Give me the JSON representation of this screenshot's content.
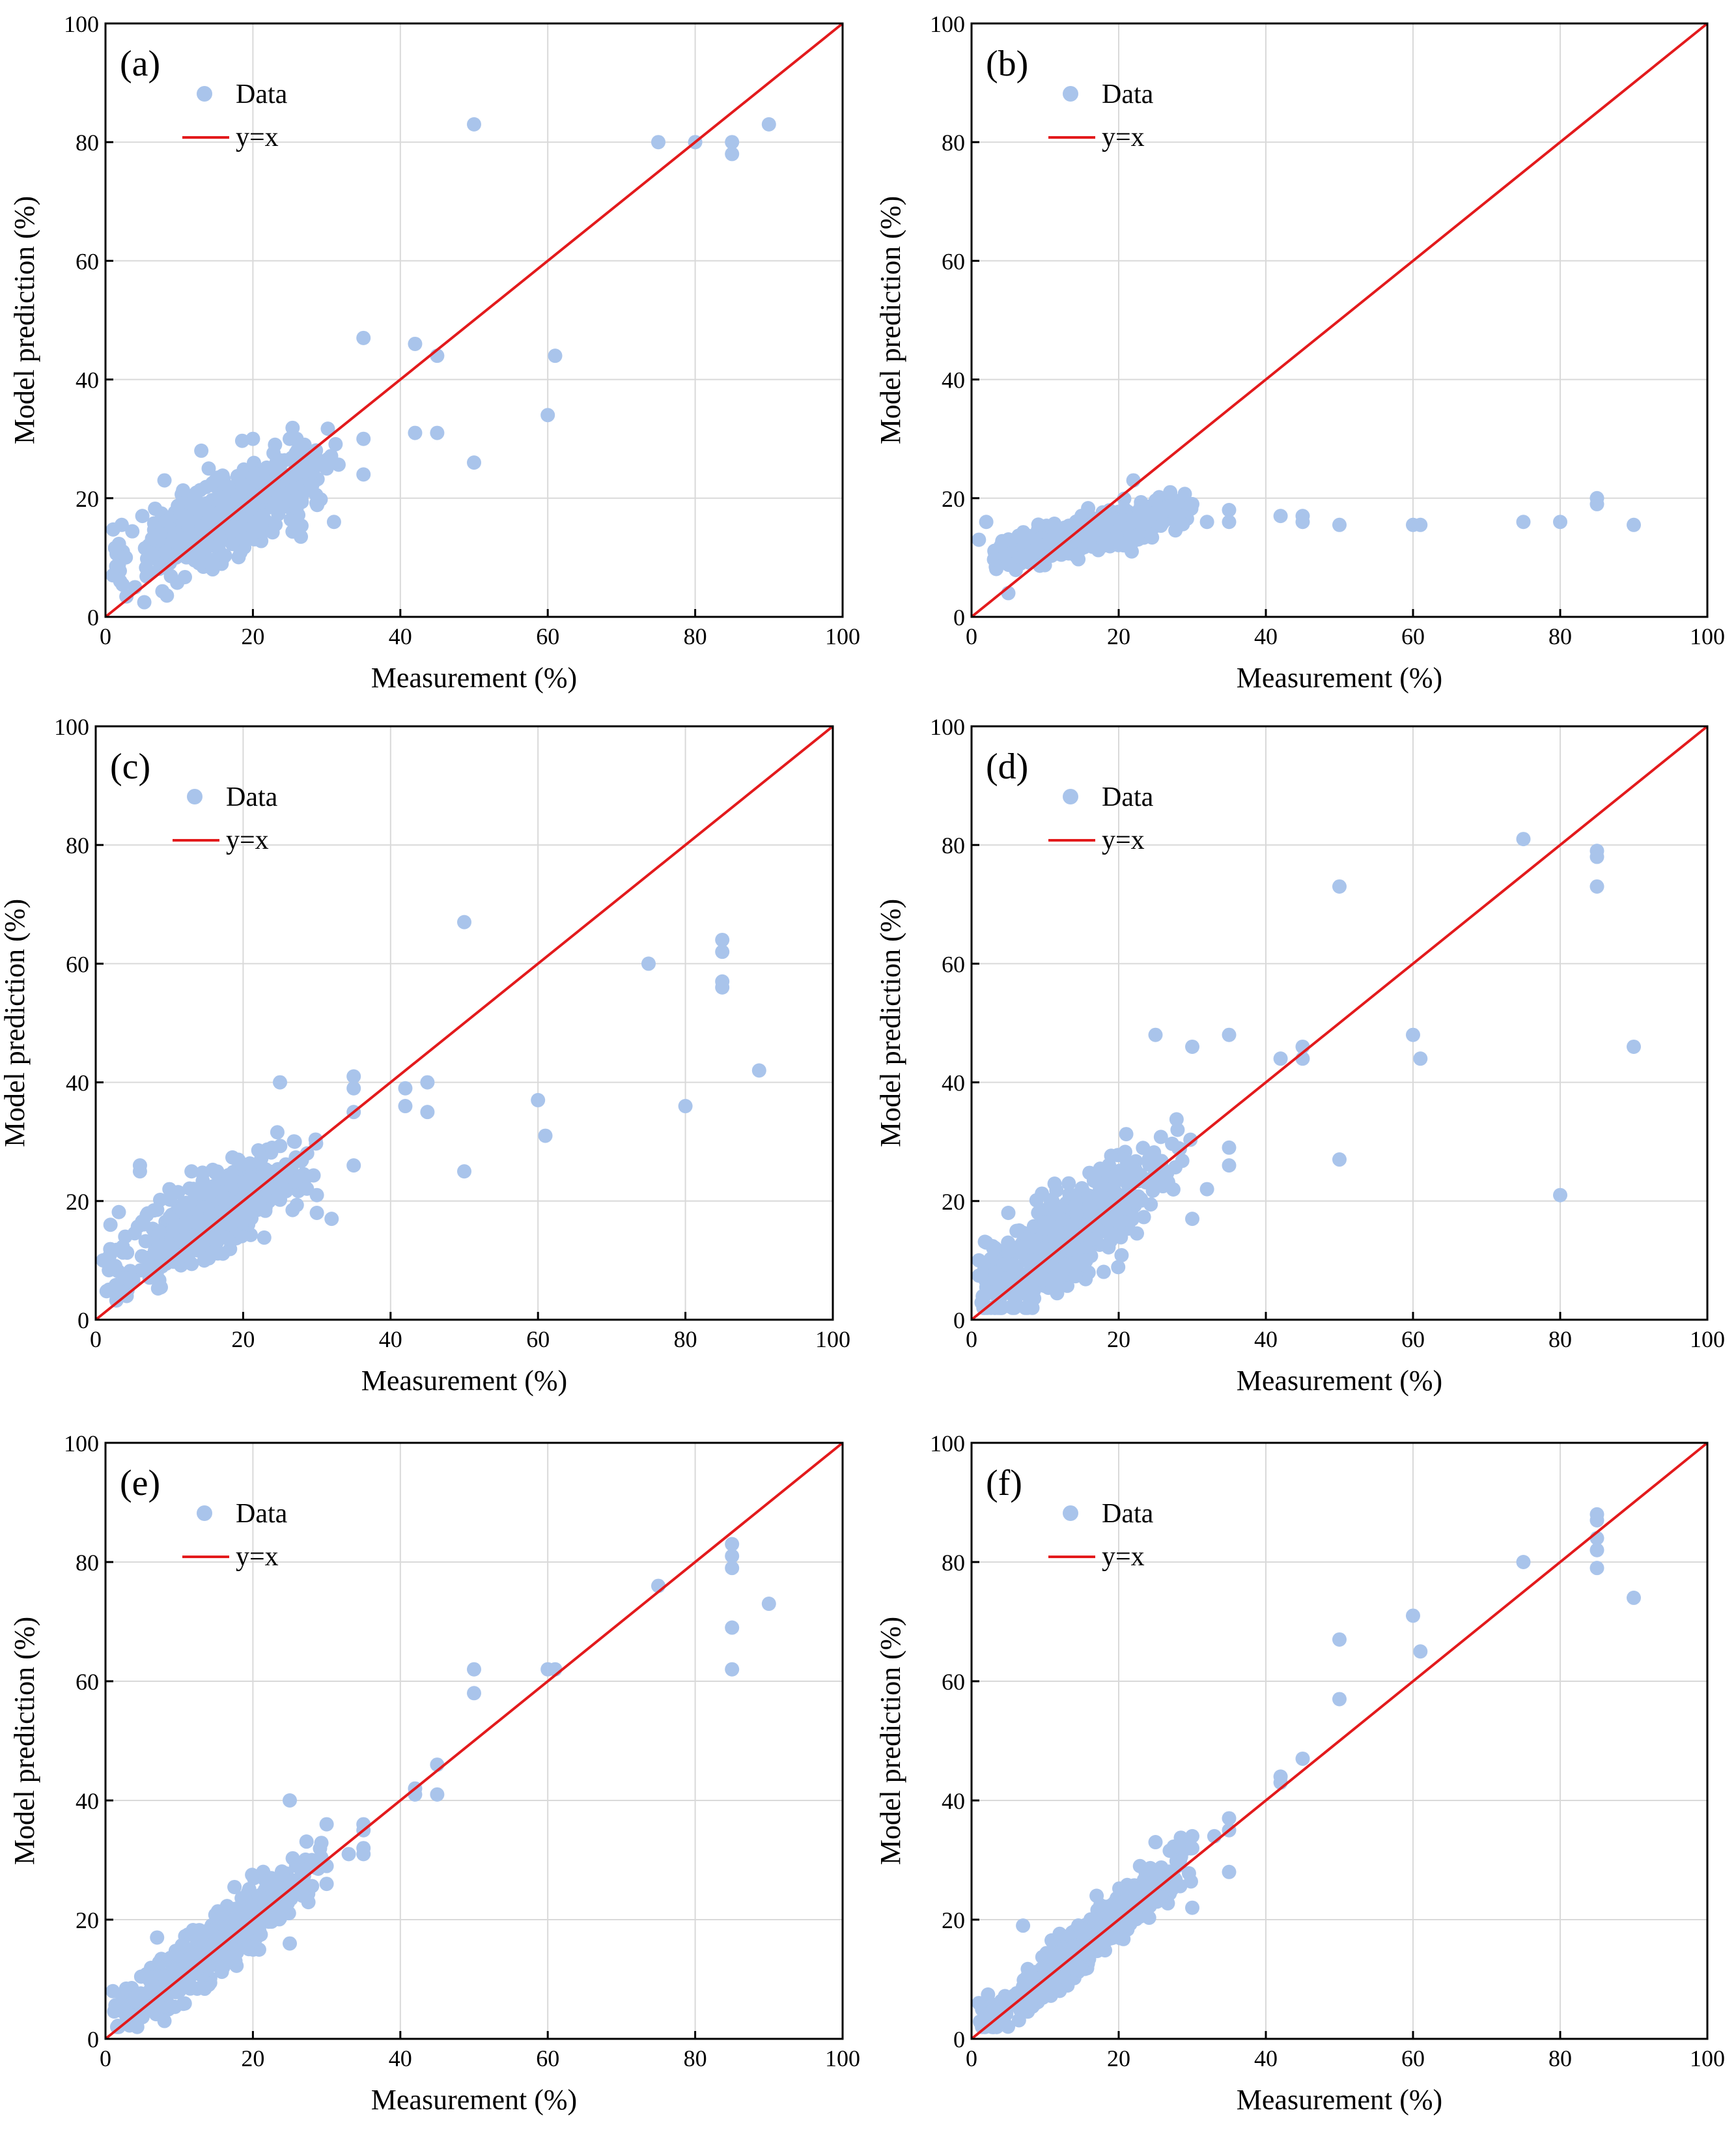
{
  "figure": {
    "xlabel": "Measurement (%)",
    "ylabel": "Model prediction (%)",
    "legend": {
      "data_label": "Data",
      "line_label": "y=x"
    },
    "colors": {
      "points": "#a9c4eb",
      "reference_line": "#e31a1c",
      "grid": "#d9d9d9"
    }
  },
  "chart_data": [
    {
      "panel": "(a)",
      "type": "scatter",
      "xlabel": "Measurement (%)",
      "ylabel": "Model prediction (%)",
      "xlim": [
        0,
        100
      ],
      "ylim": [
        0,
        100
      ],
      "xticks": [
        0,
        20,
        40,
        60,
        80,
        100
      ],
      "yticks": [
        0,
        20,
        40,
        60,
        80,
        100
      ],
      "grid": true,
      "legend": [
        "Data",
        "y=x"
      ],
      "legend_position": "top-left",
      "cluster": {
        "x_mean": 17,
        "x_sd": 6,
        "slope": 0.62,
        "intercept": 7,
        "noise": 3.5,
        "n": 520,
        "x_min": 1,
        "x_max": 32
      },
      "points": [
        [
          1,
          7
        ],
        [
          2,
          6
        ],
        [
          4,
          5
        ],
        [
          5,
          17
        ],
        [
          8,
          23
        ],
        [
          13,
          28
        ],
        [
          14,
          25
        ],
        [
          20,
          30
        ],
        [
          23,
          29
        ],
        [
          25,
          30
        ],
        [
          27,
          29
        ],
        [
          30,
          25
        ],
        [
          31,
          16
        ],
        [
          35,
          24
        ],
        [
          35,
          30
        ],
        [
          35,
          47
        ],
        [
          42,
          46
        ],
        [
          42,
          31
        ],
        [
          45,
          31
        ],
        [
          45,
          44
        ],
        [
          50,
          83
        ],
        [
          50,
          26
        ],
        [
          60,
          34
        ],
        [
          61,
          44
        ],
        [
          75,
          80
        ],
        [
          80,
          80
        ],
        [
          85,
          80
        ],
        [
          85,
          78
        ],
        [
          90,
          83
        ],
        [
          26,
          15
        ],
        [
          28,
          22
        ]
      ]
    },
    {
      "panel": "(b)",
      "type": "scatter",
      "xlabel": "Measurement (%)",
      "ylabel": "Model prediction (%)",
      "xlim": [
        0,
        100
      ],
      "ylim": [
        0,
        100
      ],
      "xticks": [
        0,
        20,
        40,
        60,
        80,
        100
      ],
      "yticks": [
        0,
        20,
        40,
        60,
        80,
        100
      ],
      "grid": true,
      "legend": [
        "Data",
        "y=x"
      ],
      "legend_position": "top-left",
      "cluster": {
        "x_mean": 16,
        "x_sd": 6,
        "slope": 0.32,
        "intercept": 9,
        "noise": 1.5,
        "n": 520,
        "x_min": 3,
        "x_max": 30
      },
      "points": [
        [
          1,
          13
        ],
        [
          2,
          16
        ],
        [
          4,
          12
        ],
        [
          5,
          4
        ],
        [
          5,
          9
        ],
        [
          22,
          23
        ],
        [
          27,
          21
        ],
        [
          30,
          19
        ],
        [
          35,
          18
        ],
        [
          35,
          16
        ],
        [
          42,
          17
        ],
        [
          45,
          17
        ],
        [
          45,
          16
        ],
        [
          50,
          15.5
        ],
        [
          60,
          15.5
        ],
        [
          61,
          15.5
        ],
        [
          75,
          16
        ],
        [
          80,
          16
        ],
        [
          85,
          20
        ],
        [
          85,
          19
        ],
        [
          90,
          15.5
        ],
        [
          32,
          16
        ]
      ]
    },
    {
      "panel": "(c)",
      "type": "scatter",
      "xlabel": "Measurement (%)",
      "ylabel": "Model prediction (%)",
      "xlim": [
        0,
        100
      ],
      "ylim": [
        0,
        100
      ],
      "xticks": [
        0,
        20,
        40,
        60,
        80,
        100
      ],
      "yticks": [
        0,
        20,
        40,
        60,
        80,
        100
      ],
      "grid": true,
      "legend": [
        "Data",
        "y=x"
      ],
      "legend_position": "top-left",
      "cluster": {
        "x_mean": 16,
        "x_sd": 6,
        "slope": 0.65,
        "intercept": 7,
        "noise": 3,
        "n": 520,
        "x_min": 1,
        "x_max": 30
      },
      "points": [
        [
          1,
          10
        ],
        [
          2,
          16
        ],
        [
          4,
          14
        ],
        [
          4,
          7
        ],
        [
          6,
          25
        ],
        [
          6,
          26
        ],
        [
          10,
          22
        ],
        [
          13,
          25
        ],
        [
          25,
          40
        ],
        [
          27,
          30
        ],
        [
          30,
          21
        ],
        [
          30,
          18
        ],
        [
          32,
          17
        ],
        [
          35,
          41
        ],
        [
          35,
          39
        ],
        [
          35,
          35
        ],
        [
          35,
          26
        ],
        [
          42,
          39
        ],
        [
          42,
          36
        ],
        [
          45,
          40
        ],
        [
          45,
          35
        ],
        [
          50,
          67
        ],
        [
          50,
          25
        ],
        [
          60,
          37
        ],
        [
          61,
          31
        ],
        [
          75,
          60
        ],
        [
          80,
          36
        ],
        [
          85,
          64
        ],
        [
          85,
          62
        ],
        [
          85,
          57
        ],
        [
          85,
          56
        ],
        [
          90,
          42
        ]
      ]
    },
    {
      "panel": "(d)",
      "type": "scatter",
      "xlabel": "Measurement (%)",
      "ylabel": "Model prediction (%)",
      "xlim": [
        0,
        100
      ],
      "ylim": [
        0,
        100
      ],
      "xticks": [
        0,
        20,
        40,
        60,
        80,
        100
      ],
      "yticks": [
        0,
        20,
        40,
        60,
        80,
        100
      ],
      "grid": true,
      "legend": [
        "Data",
        "y=x"
      ],
      "legend_position": "top-left",
      "cluster": {
        "x_mean": 14,
        "x_sd": 6,
        "slope": 0.9,
        "intercept": 2.5,
        "noise": 4,
        "n": 560,
        "x_min": 1,
        "x_max": 30
      },
      "points": [
        [
          1,
          10
        ],
        [
          2,
          13
        ],
        [
          5,
          18
        ],
        [
          25,
          48
        ],
        [
          28,
          32
        ],
        [
          30,
          46
        ],
        [
          30,
          17
        ],
        [
          32,
          22
        ],
        [
          35,
          48
        ],
        [
          35,
          29
        ],
        [
          35,
          26
        ],
        [
          42,
          44
        ],
        [
          45,
          46
        ],
        [
          45,
          44
        ],
        [
          50,
          73
        ],
        [
          50,
          27
        ],
        [
          60,
          48
        ],
        [
          61,
          44
        ],
        [
          75,
          81
        ],
        [
          80,
          21
        ],
        [
          85,
          79
        ],
        [
          85,
          78
        ],
        [
          85,
          73
        ],
        [
          90,
          46
        ]
      ]
    },
    {
      "panel": "(e)",
      "type": "scatter",
      "xlabel": "Measurement (%)",
      "ylabel": "Model prediction (%)",
      "xlim": [
        0,
        100
      ],
      "ylim": [
        0,
        100
      ],
      "xticks": [
        0,
        20,
        40,
        60,
        80,
        100
      ],
      "yticks": [
        0,
        20,
        40,
        60,
        80,
        100
      ],
      "grid": true,
      "legend": [
        "Data",
        "y=x"
      ],
      "legend_position": "top-left",
      "cluster": {
        "x_mean": 16,
        "x_sd": 6.5,
        "slope": 0.95,
        "intercept": 1.5,
        "noise": 2.5,
        "n": 560,
        "x_min": 1,
        "x_max": 30
      },
      "points": [
        [
          1,
          8
        ],
        [
          2,
          6
        ],
        [
          7,
          17
        ],
        [
          8,
          3
        ],
        [
          25,
          40
        ],
        [
          25,
          16
        ],
        [
          28,
          30
        ],
        [
          30,
          36
        ],
        [
          30,
          29
        ],
        [
          30,
          26
        ],
        [
          33,
          31
        ],
        [
          35,
          36
        ],
        [
          35,
          35
        ],
        [
          35,
          32
        ],
        [
          35,
          31
        ],
        [
          42,
          42
        ],
        [
          42,
          41
        ],
        [
          45,
          46
        ],
        [
          45,
          41
        ],
        [
          50,
          62
        ],
        [
          50,
          58
        ],
        [
          60,
          62
        ],
        [
          61,
          62
        ],
        [
          75,
          76
        ],
        [
          85,
          83
        ],
        [
          85,
          81
        ],
        [
          85,
          79
        ],
        [
          85,
          69
        ],
        [
          85,
          62
        ],
        [
          90,
          73
        ]
      ]
    },
    {
      "panel": "(f)",
      "type": "scatter",
      "xlabel": "Measurement (%)",
      "ylabel": "Model prediction (%)",
      "xlim": [
        0,
        100
      ],
      "ylim": [
        0,
        100
      ],
      "xticks": [
        0,
        20,
        40,
        60,
        80,
        100
      ],
      "yticks": [
        0,
        20,
        40,
        60,
        80,
        100
      ],
      "grid": true,
      "legend": [
        "Data",
        "y=x"
      ],
      "legend_position": "top-left",
      "cluster": {
        "x_mean": 15,
        "x_sd": 6.5,
        "slope": 1.0,
        "intercept": 0.5,
        "noise": 2,
        "n": 560,
        "x_min": 1,
        "x_max": 30
      },
      "points": [
        [
          1,
          6
        ],
        [
          2,
          4
        ],
        [
          7,
          19
        ],
        [
          17,
          24
        ],
        [
          25,
          33
        ],
        [
          28,
          29
        ],
        [
          30,
          34
        ],
        [
          30,
          32
        ],
        [
          30,
          22
        ],
        [
          33,
          34
        ],
        [
          35,
          37
        ],
        [
          35,
          35
        ],
        [
          35,
          28
        ],
        [
          42,
          44
        ],
        [
          42,
          43
        ],
        [
          45,
          47
        ],
        [
          50,
          67
        ],
        [
          50,
          57
        ],
        [
          60,
          71
        ],
        [
          61,
          65
        ],
        [
          75,
          80
        ],
        [
          85,
          88
        ],
        [
          85,
          87
        ],
        [
          85,
          84
        ],
        [
          85,
          82
        ],
        [
          85,
          79
        ],
        [
          90,
          74
        ]
      ]
    }
  ]
}
